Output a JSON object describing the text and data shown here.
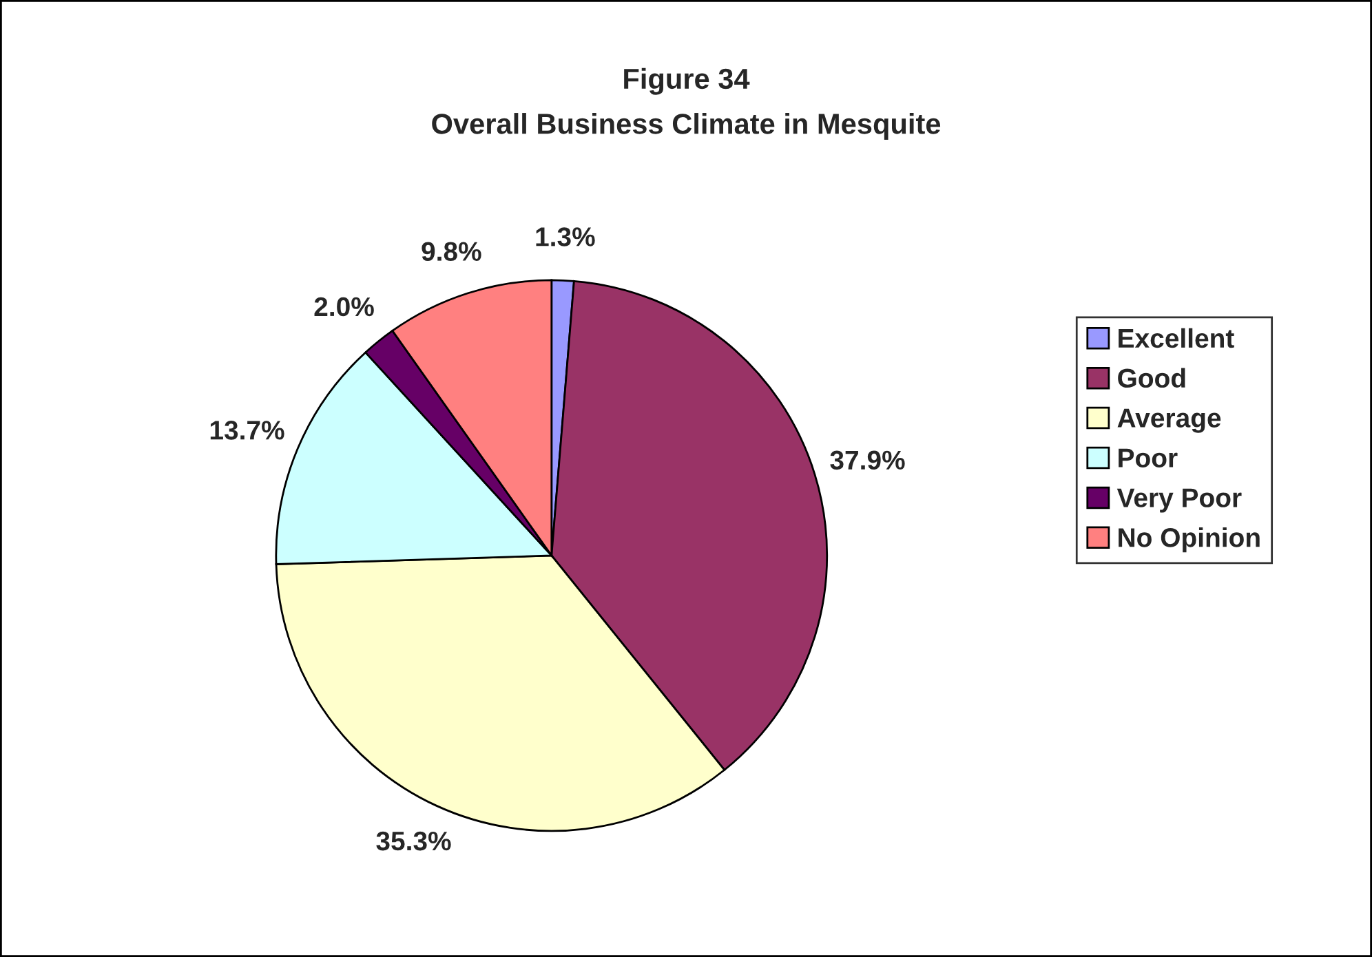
{
  "chart_data": {
    "type": "pie",
    "title": "Figure 34",
    "subtitle": "Overall Business Climate in Mesquite",
    "categories": [
      "Excellent",
      "Good",
      "Average",
      "Poor",
      "Very Poor",
      "No Opinion"
    ],
    "values": [
      1.3,
      37.9,
      35.3,
      13.7,
      2.0,
      9.8
    ],
    "colors": [
      "#9999ff",
      "#993366",
      "#ffffcc",
      "#ccffff",
      "#660066",
      "#ff8080"
    ],
    "value_labels": [
      "1.3%",
      "37.9%",
      "35.3%",
      "13.7%",
      "2.0%",
      "9.8%"
    ],
    "legend": "right"
  }
}
